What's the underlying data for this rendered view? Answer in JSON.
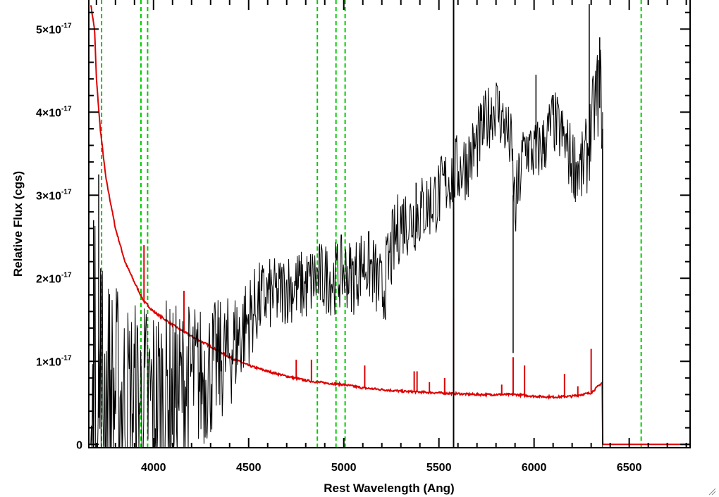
{
  "chart_data": {
    "type": "line",
    "title": "",
    "xlabel": "Rest Wavelength (Ang)",
    "ylabel": "Relative Flux (cgs)",
    "xlim": [
      3660,
      6820
    ],
    "ylim": [
      -0.04,
      5.35
    ],
    "y_unit_scale": "1e-17",
    "x_ticks": [
      4000,
      4500,
      5000,
      5500,
      6000,
      6500
    ],
    "y_ticks": [
      {
        "value": 0,
        "mantissa": "0",
        "base": "",
        "exponent": ""
      },
      {
        "value": 1,
        "mantissa": "1",
        "base": "×10",
        "exponent": "-17"
      },
      {
        "value": 2,
        "mantissa": "2",
        "base": "×10",
        "exponent": "-17"
      },
      {
        "value": 3,
        "mantissa": "3",
        "base": "×10",
        "exponent": "-17"
      },
      {
        "value": 4,
        "mantissa": "4",
        "base": "×10",
        "exponent": "-17"
      },
      {
        "value": 5,
        "mantissa": "5",
        "base": "×10",
        "exponent": "-17"
      }
    ],
    "grid": false,
    "colors": {
      "spectrum": "#000000",
      "error": "#dd0000",
      "line_markers": "#00cc00"
    },
    "series": [
      {
        "role": "flux spectrum",
        "color": "#000000",
        "x": [
          3670,
          3690,
          3700,
          3720,
          3760,
          3800,
          3850,
          3900,
          3950,
          4000,
          4050,
          4100,
          4150,
          4200,
          4250,
          4300,
          4350,
          4400,
          4450,
          4500,
          4550,
          4600,
          4650,
          4700,
          4750,
          4800,
          4850,
          4900,
          4950,
          5000,
          5050,
          5100,
          5150,
          5200,
          5250,
          5300,
          5350,
          5400,
          5450,
          5500,
          5550,
          5600,
          5650,
          5700,
          5750,
          5800,
          5850,
          5880,
          5900,
          5950,
          6000,
          6050,
          6100,
          6150,
          6200,
          6250,
          6280,
          6300,
          6320,
          6340,
          6350,
          6360
        ],
        "y": [
          0.0,
          0.2,
          0.4,
          0.6,
          0.6,
          0.6,
          0.5,
          0.5,
          0.5,
          0.5,
          0.6,
          0.6,
          0.7,
          0.8,
          0.8,
          0.9,
          1.0,
          1.1,
          1.3,
          1.5,
          1.7,
          1.8,
          1.8,
          1.9,
          1.9,
          1.9,
          2.0,
          2.0,
          2.0,
          2.1,
          2.0,
          2.2,
          2.1,
          1.8,
          2.3,
          2.7,
          2.7,
          2.8,
          2.9,
          3.0,
          3.2,
          3.3,
          3.4,
          3.6,
          3.9,
          4.1,
          3.8,
          3.6,
          2.8,
          3.6,
          3.5,
          3.6,
          3.9,
          3.7,
          3.4,
          3.3,
          3.5,
          3.8,
          4.1,
          4.3,
          4.2,
          4.0
        ],
        "noise": [
          0.0,
          2.5,
          2.4,
          2.2,
          1.5,
          1.4,
          1.3,
          1.3,
          1.3,
          1.3,
          1.2,
          1.1,
          1.0,
          0.95,
          0.9,
          0.85,
          0.75,
          0.7,
          0.65,
          0.55,
          0.5,
          0.45,
          0.45,
          0.45,
          0.45,
          0.45,
          0.45,
          0.45,
          0.45,
          0.45,
          0.45,
          0.45,
          0.45,
          0.5,
          0.5,
          0.45,
          0.45,
          0.45,
          0.45,
          0.45,
          0.45,
          0.45,
          0.45,
          0.45,
          0.4,
          0.4,
          0.4,
          0.4,
          0.5,
          0.4,
          0.4,
          0.4,
          0.4,
          0.4,
          0.45,
          0.45,
          0.5,
          0.5,
          0.5,
          0.6,
          0.6,
          0.6
        ],
        "spikes": [
          {
            "x": 3685,
            "y": 2.7
          },
          {
            "x": 3712,
            "y": 3.25
          },
          {
            "x": 5380,
            "y": 3.15
          },
          {
            "x": 5577,
            "y": 5.35
          },
          {
            "x": 5890,
            "y": 1.1
          },
          {
            "x": 6010,
            "y": 4.45
          },
          {
            "x": 6290,
            "y": 5.3
          },
          {
            "x": 6345,
            "y": 4.9
          },
          {
            "x": 6360,
            "y": 0.0
          }
        ]
      },
      {
        "role": "error spectrum",
        "color": "#dd0000",
        "x": [
          3670,
          3690,
          3700,
          3720,
          3750,
          3800,
          3850,
          3900,
          3950,
          4000,
          4100,
          4200,
          4300,
          4400,
          4500,
          4600,
          4700,
          4800,
          4900,
          5000,
          5100,
          5200,
          5300,
          5400,
          5500,
          5600,
          5700,
          5800,
          5900,
          6000,
          6100,
          6200,
          6300,
          6360,
          6362,
          6820
        ],
        "y": [
          5.3,
          5.0,
          4.4,
          3.8,
          3.2,
          2.6,
          2.2,
          1.95,
          1.72,
          1.6,
          1.44,
          1.3,
          1.18,
          1.05,
          0.95,
          0.88,
          0.82,
          0.77,
          0.74,
          0.72,
          0.68,
          0.66,
          0.64,
          0.63,
          0.62,
          0.61,
          0.6,
          0.6,
          0.6,
          0.58,
          0.57,
          0.58,
          0.62,
          0.75,
          0.0,
          0.0
        ],
        "spikes": [
          {
            "x": 3950,
            "y": 2.4
          },
          {
            "x": 4160,
            "y": 1.85
          },
          {
            "x": 4750,
            "y": 1.02
          },
          {
            "x": 4830,
            "y": 1.02
          },
          {
            "x": 5110,
            "y": 0.95
          },
          {
            "x": 5370,
            "y": 0.88
          },
          {
            "x": 5385,
            "y": 0.88
          },
          {
            "x": 5450,
            "y": 0.75
          },
          {
            "x": 5530,
            "y": 0.8
          },
          {
            "x": 5577,
            "y": 1.75
          },
          {
            "x": 5830,
            "y": 0.72
          },
          {
            "x": 5890,
            "y": 1.05
          },
          {
            "x": 5950,
            "y": 0.95
          },
          {
            "x": 6160,
            "y": 0.85
          },
          {
            "x": 6230,
            "y": 0.7
          },
          {
            "x": 6300,
            "y": 1.15
          }
        ]
      }
    ],
    "vertical_markers": [
      3727,
      3934,
      3969,
      4861,
      4959,
      5007,
      6563
    ]
  }
}
